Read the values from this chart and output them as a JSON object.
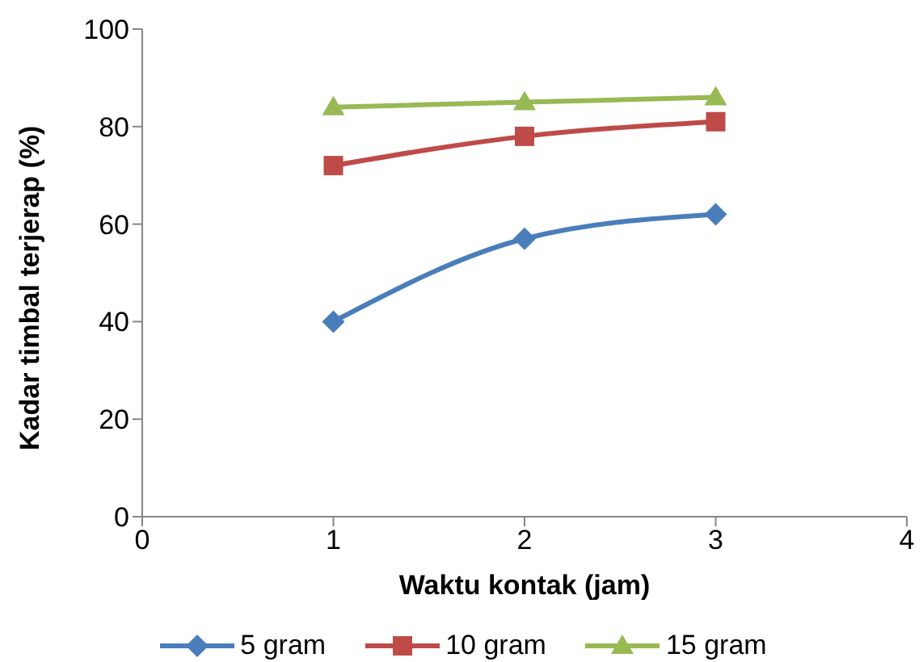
{
  "chart_data": {
    "type": "line",
    "xlabel": "Waktu kontak (jam)",
    "ylabel": "Kadar timbal terjerap (%)",
    "x": [
      1,
      2,
      3
    ],
    "xlim": [
      0,
      4
    ],
    "xticks": [
      0,
      1,
      2,
      3,
      4
    ],
    "ylim": [
      0,
      100
    ],
    "yticks": [
      0,
      20,
      40,
      60,
      80,
      100
    ],
    "grid": false,
    "legend": "bottom",
    "series": [
      {
        "name": "5 gram",
        "color": "#4a7ebb",
        "marker": "diamond",
        "values": [
          40,
          57,
          62
        ]
      },
      {
        "name": "10 gram",
        "color": "#be4b48",
        "marker": "square",
        "values": [
          72,
          78,
          81
        ]
      },
      {
        "name": "15 gram",
        "color": "#98b954",
        "marker": "triangle",
        "values": [
          84,
          85,
          86
        ]
      }
    ]
  }
}
